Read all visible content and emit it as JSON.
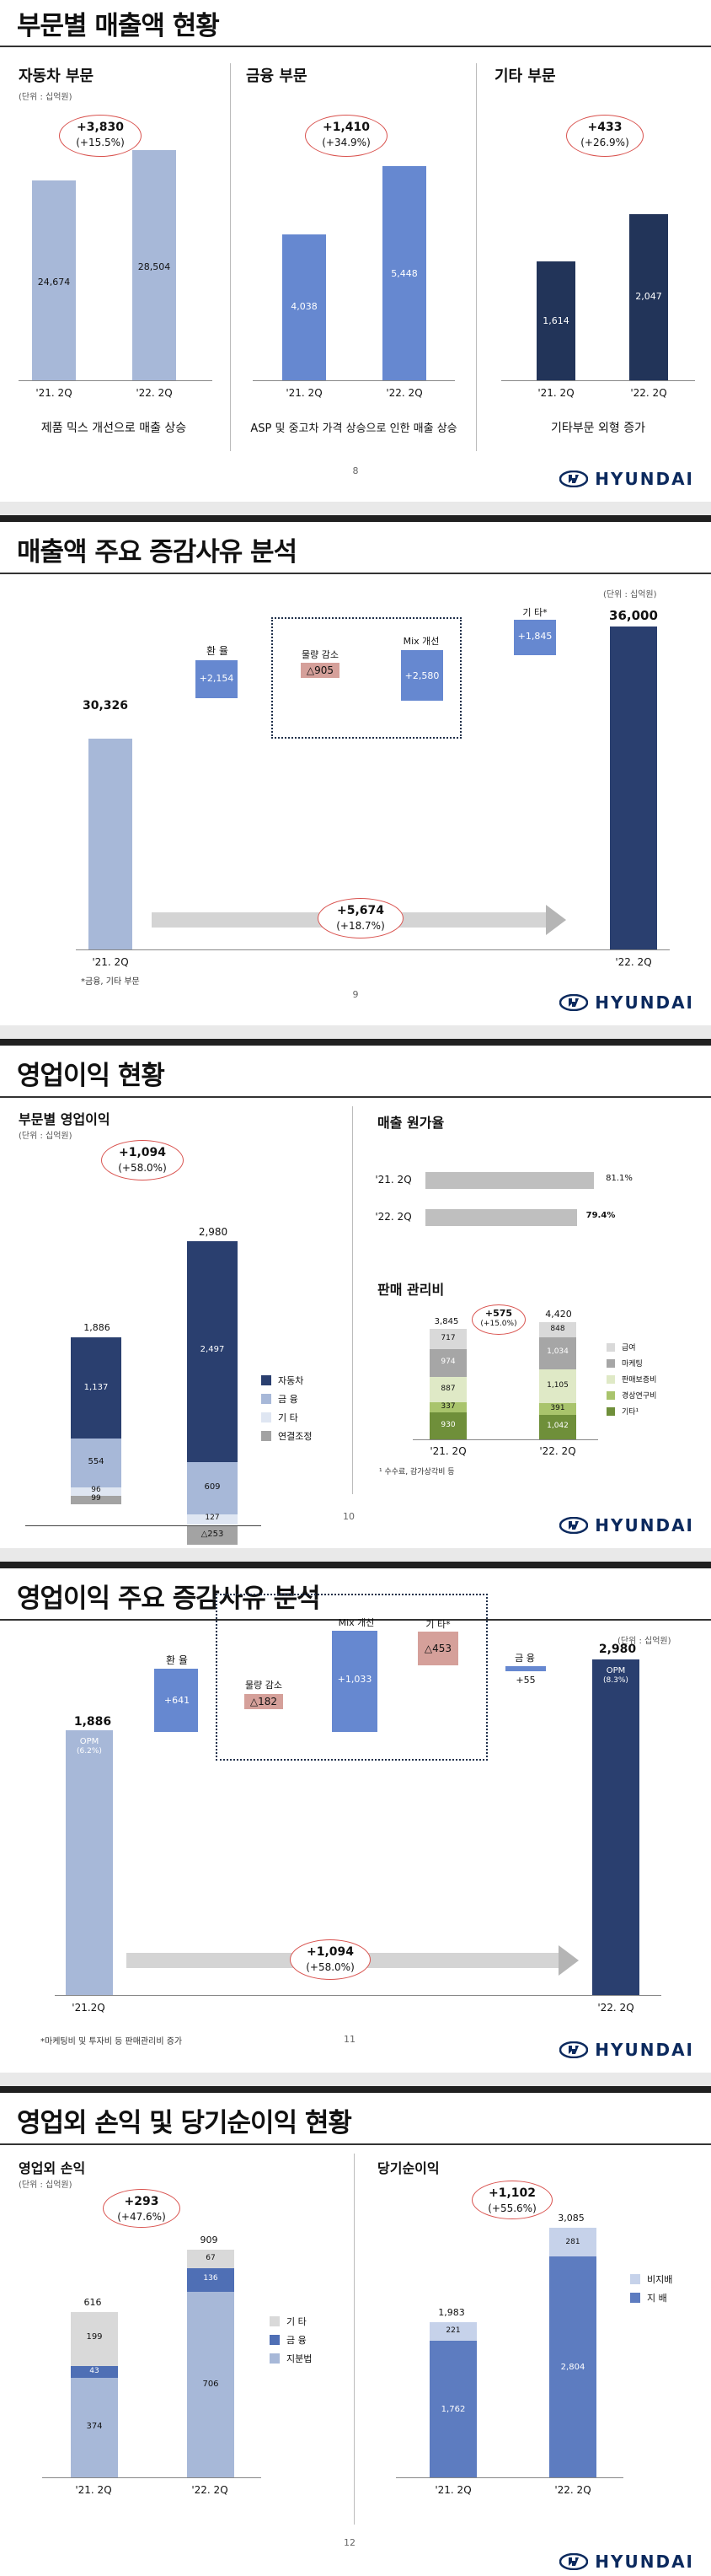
{
  "colors": {
    "auto": "#a7b8d8",
    "finance": "#6688d0",
    "other": "#223459",
    "navy": "#2a3f6f",
    "oval": "#d9534f"
  },
  "s1": {
    "title": "부문별 매출액 현황",
    "auto": {
      "label": "자동차 부문",
      "unit": "(단위 : 십억원)",
      "delta": "+3,830",
      "pct": "(+15.5%)",
      "v1": "24,674",
      "v2": "28,504",
      "x1": "'21. 2Q",
      "x2": "'22. 2Q",
      "caption": "제품 믹스 개선으로 매출 상승"
    },
    "fin": {
      "label": "금융 부문",
      "delta": "+1,410",
      "pct": "(+34.9%)",
      "v1": "4,038",
      "v2": "5,448",
      "x1": "'21. 2Q",
      "x2": "'22. 2Q",
      "caption": "ASP 및 중고차 가격 상승으로 인한 매출 상승"
    },
    "etc": {
      "label": "기타 부문",
      "delta": "+433",
      "pct": "(+26.9%)",
      "v1": "1,614",
      "v2": "2,047",
      "x1": "'21. 2Q",
      "x2": "'22. 2Q",
      "caption": "기타부문 외형 증가"
    },
    "page": "8",
    "logo": "HYUNDAI"
  },
  "s2": {
    "title": "매출액 주요 증감사유 분석",
    "unit": "(단위 : 십억원)",
    "start": "30,326",
    "end": "36,000",
    "fx_label": "환 율",
    "fx": "+2,154",
    "vol_label": "물량 감소",
    "vol": "△905",
    "mix_label": "Mix 개선",
    "mix": "+2,580",
    "etc_label": "기 타*",
    "etc": "+1,845",
    "delta": "+5,674",
    "pct": "(+18.7%)",
    "x1": "'21. 2Q",
    "x2": "'22. 2Q",
    "note": "*금융, 기타 부문",
    "page": "9",
    "logo": "HYUNDAI"
  },
  "s3": {
    "title": "영업이익 현황",
    "left": {
      "label": "부문별 영업이익",
      "unit": "(단위 : 십억원)",
      "delta": "+1,094",
      "pct": "(+58.0%)",
      "t1": "1,886",
      "t2": "2,980",
      "a1": "1,137",
      "a2": "2,497",
      "f1": "554",
      "f2": "609",
      "e1": "96",
      "e2": "127",
      "c1": "99",
      "c2": "△253",
      "x1": "'21. 2Q",
      "x2": "'22. 2Q",
      "legend": [
        "자동차",
        "금 융",
        "기 타",
        "연결조정"
      ]
    },
    "cogs": {
      "label": "매출 원가율",
      "r1": "'21. 2Q",
      "r2": "'22. 2Q",
      "v1": "81.1%",
      "v2": "79.4%"
    },
    "sga": {
      "label": "판매 관리비",
      "delta": "+575",
      "pct": "(+15.0%)",
      "t1": "3,845",
      "t2": "4,420",
      "c1": [
        "717",
        "974",
        "887",
        "337",
        "930"
      ],
      "c2": [
        "848",
        "1,034",
        "1,105",
        "391",
        "1,042"
      ],
      "x1": "'21. 2Q",
      "x2": "'22. 2Q",
      "legend": [
        "급여",
        "마케팅",
        "판매보증비",
        "경상연구비",
        "기타¹"
      ],
      "note": "¹ 수수료, 감가상각비 등"
    },
    "page": "10",
    "logo": "HYUNDAI"
  },
  "s4": {
    "title": "영업이익 주요 증감사유 분석",
    "unit": "(단위 : 십억원)",
    "start": "1,886",
    "opm1": "OPM",
    "opm1v": "(6.2%)",
    "end": "2,980",
    "opm2": "OPM",
    "opm2v": "(8.3%)",
    "fx_label": "환 율",
    "fx": "+641",
    "vol_label": "물량 감소",
    "vol": "△182",
    "mix_label": "Mix 개선",
    "mix": "+1,033",
    "etc_label": "기 타*",
    "etc": "△453",
    "fin_label": "금 융",
    "fin": "+55",
    "delta": "+1,094",
    "pct": "(+58.0%)",
    "x1": "'21.2Q",
    "x2": "'22. 2Q",
    "note": "*마케팅비 및 투자비 등 판매관리비 증가",
    "page": "11",
    "logo": "HYUNDAI"
  },
  "s5": {
    "title": "영업외 손익 및 당기순이익 현황",
    "left": {
      "label": "영업외 손익",
      "unit": "(단위 : 십억원)",
      "delta": "+293",
      "pct": "(+47.6%)",
      "t1": "616",
      "t2": "909",
      "o1": "199",
      "o2": "67",
      "f1": "43",
      "f2": "136",
      "e1": "374",
      "e2": "706",
      "x1": "'21. 2Q",
      "x2": "'22. 2Q",
      "legend": [
        "기 타",
        "금 융",
        "지분법"
      ]
    },
    "right": {
      "label": "당기순이익",
      "delta": "+1,102",
      "pct": "(+55.6%)",
      "t1": "1,983",
      "t2": "3,085",
      "n1": "221",
      "n2": "281",
      "c1": "1,762",
      "c2": "2,804",
      "x1": "'21. 2Q",
      "x2": "'22. 2Q",
      "legend": [
        "비지배",
        "지 배"
      ]
    },
    "page": "12",
    "logo": "HYUNDAI"
  }
}
